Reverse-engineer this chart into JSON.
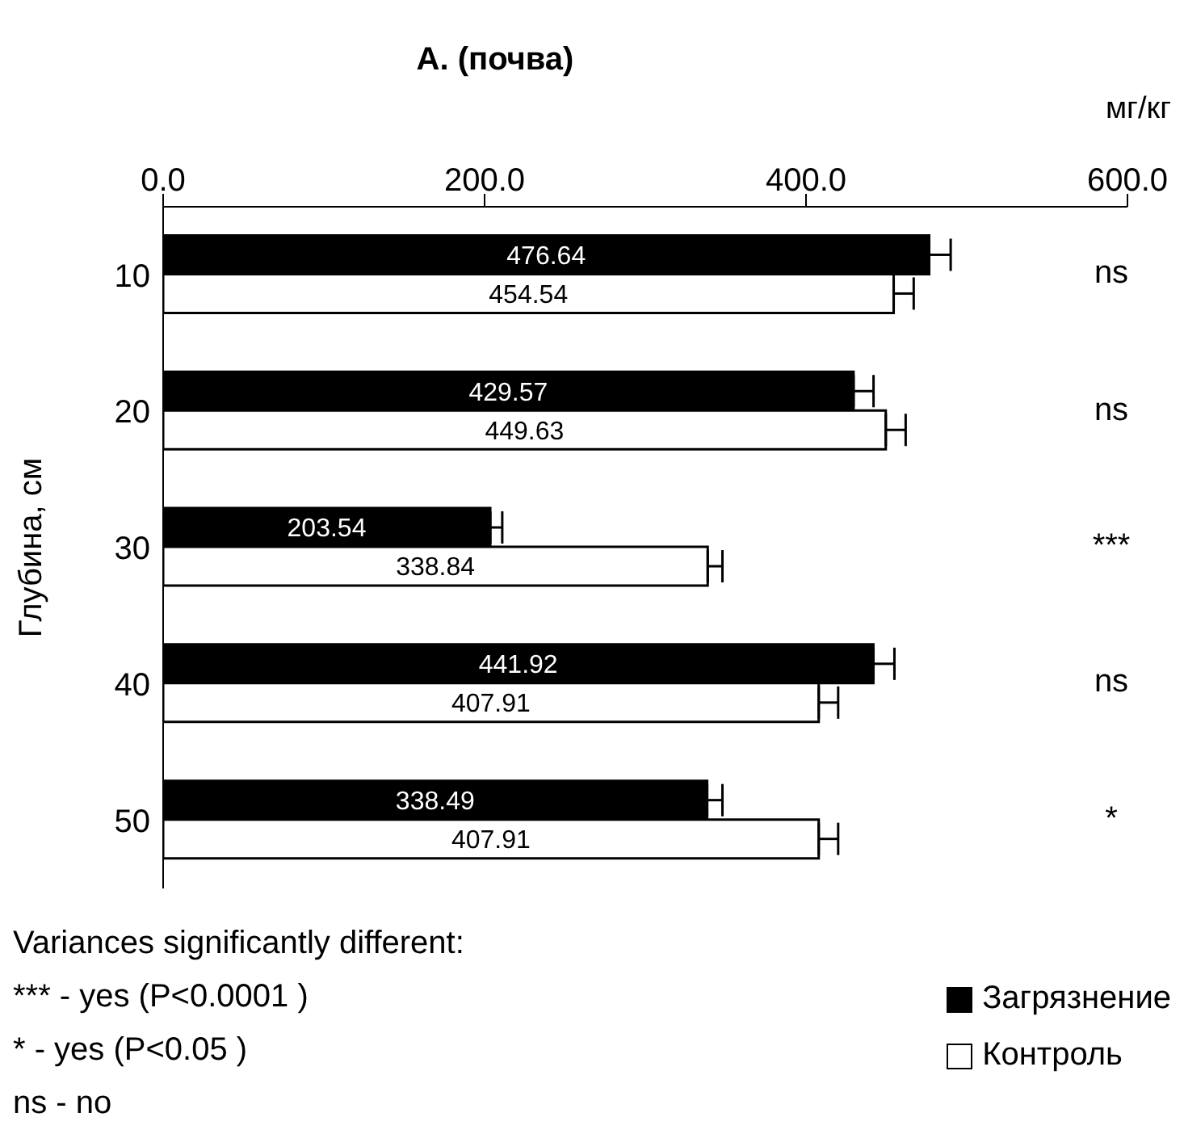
{
  "chart_data": {
    "type": "bar",
    "orientation": "horizontal",
    "title": "A. (почва)",
    "xlabel": "мг/кг",
    "ylabel": "Глубина, см",
    "categories": [
      "10",
      "20",
      "30",
      "40",
      "50"
    ],
    "series": [
      {
        "name": "Загрязнение",
        "color": "#000000",
        "values": [
          476.64,
          429.57,
          203.54,
          441.92,
          338.49
        ],
        "errors": [
          [
            476.64,
            490
          ],
          [
            429.57,
            442
          ],
          [
            203.54,
            211
          ],
          [
            441.92,
            455
          ],
          [
            338.49,
            348
          ]
        ]
      },
      {
        "name": "Контроль",
        "color": "#ffffff",
        "values": [
          454.54,
          449.63,
          338.84,
          407.91,
          407.91
        ],
        "errors": [
          [
            454.54,
            467
          ],
          [
            449.63,
            462
          ],
          [
            338.84,
            348
          ],
          [
            407.91,
            420
          ],
          [
            407.91,
            420
          ]
        ]
      }
    ],
    "xlim": [
      0,
      600
    ],
    "xticks": [
      {
        "value": 0,
        "label": "0.0"
      },
      {
        "value": 200,
        "label": "200.0"
      },
      {
        "value": 400,
        "label": "400.0"
      },
      {
        "value": 600,
        "label": "600.0"
      }
    ],
    "data_labels": true,
    "legend": "bottom right",
    "grid": false,
    "annotations": [
      "ns",
      "ns",
      "***",
      "ns",
      "*",
      "Variances significantly different:",
      "*** - yes (P<0.0001 )",
      "* - yes (P<0.05 )",
      "ns - no"
    ]
  }
}
